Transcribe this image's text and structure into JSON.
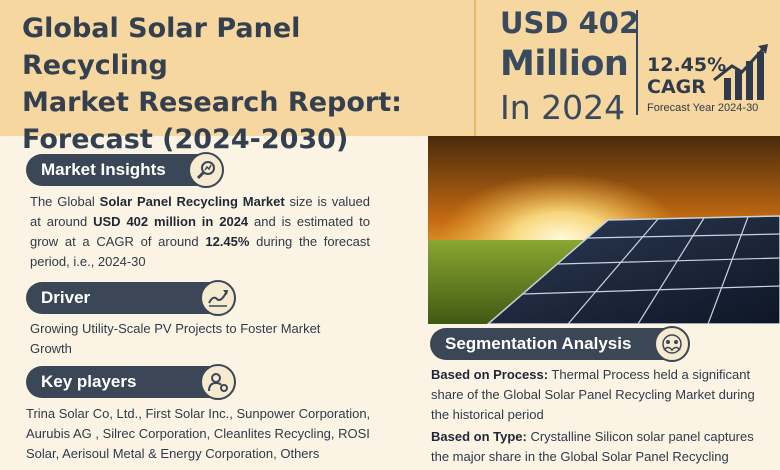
{
  "header": {
    "title_line1": "Global Solar Panel Recycling",
    "title_line2": "Market Research Report:",
    "title_line3": "Forecast (2024-2030)",
    "value_usd": "USD 402",
    "value_unit": "Million",
    "value_year": "In 2024",
    "cagr_value": "12.45%",
    "cagr_label": "CAGR",
    "forecast_year": "Forecast Year 2024-30"
  },
  "market_insights": {
    "heading": "Market Insights",
    "t1": "The Global ",
    "b1": "Solar Panel Recycling Market",
    "t2": " size is valued at around ",
    "b2": "USD 402 million in 2024",
    "t3": " and is estimated to grow at a CAGR of around ",
    "b3": "12.45%",
    "t4": " during the forecast period, i.e., 2024-30"
  },
  "driver": {
    "heading": "Driver",
    "text": "Growing Utility-Scale PV Projects to Foster Market Growth"
  },
  "key_players": {
    "heading": "Key players",
    "text": "Trina Solar Co, Ltd., First Solar Inc., Sunpower Corporation, Aurubis AG , Silrec Corporation, Cleanlites Recycling, ROSI Solar, Aerisoul Metal & Energy Corporation, Others"
  },
  "segmentation": {
    "heading": "Segmentation Analysis",
    "process_label": "Based on Process:",
    "process_text": " Thermal Process held a significant share of the Global Solar Panel Recycling Market during the historical period",
    "type_label": "Based on Type:",
    "type_text": " Crystalline Silicon solar panel captures the major share in the Global Solar Panel Recycling Market"
  },
  "icons": {
    "insights": "magnifier-chart-icon",
    "driver": "growth-chart-icon",
    "players": "person-gear-icon",
    "segmentation": "people-group-icon",
    "cagr": "rising-bar-chart-icon"
  },
  "colors": {
    "header_bg": "#f6d79f",
    "page_bg": "#fbf4e4",
    "pill_bg": "#3b4656",
    "text": "#2f3a4a"
  }
}
